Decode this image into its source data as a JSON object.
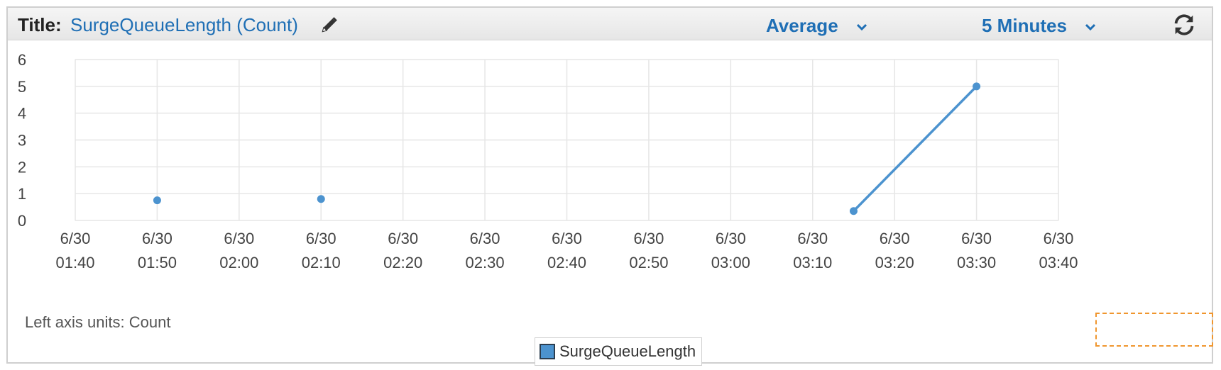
{
  "header": {
    "title_label": "Title:",
    "title_value": "SurgeQueueLength (Count)",
    "statistic": "Average",
    "period": "5 Minutes"
  },
  "icons": {
    "edit": "pencil-icon",
    "statistic_chevron": "chevron-down-icon",
    "period_chevron": "chevron-down-icon",
    "refresh": "refresh-icon"
  },
  "footer": {
    "axis_units_label": "Left axis units:",
    "axis_units_value": "Count"
  },
  "colors": {
    "accent": "#1f6fb5",
    "series": "#4c93cf",
    "grid": "#e6e6e6"
  },
  "chart_data": {
    "type": "line",
    "title": "",
    "xlabel": "",
    "ylabel": "",
    "ylim": [
      0,
      6
    ],
    "y_ticks": [
      "0",
      "1",
      "2",
      "3",
      "4",
      "5",
      "6"
    ],
    "x_ticks": [
      {
        "date": "6/30",
        "time": "01:40"
      },
      {
        "date": "6/30",
        "time": "01:50"
      },
      {
        "date": "6/30",
        "time": "02:00"
      },
      {
        "date": "6/30",
        "time": "02:10"
      },
      {
        "date": "6/30",
        "time": "02:20"
      },
      {
        "date": "6/30",
        "time": "02:30"
      },
      {
        "date": "6/30",
        "time": "02:40"
      },
      {
        "date": "6/30",
        "time": "02:50"
      },
      {
        "date": "6/30",
        "time": "03:00"
      },
      {
        "date": "6/30",
        "time": "03:10"
      },
      {
        "date": "6/30",
        "time": "03:20"
      },
      {
        "date": "6/30",
        "time": "03:30"
      },
      {
        "date": "6/30",
        "time": "03:40"
      }
    ],
    "xlim": [
      "6/30 01:40",
      "6/30 03:40"
    ],
    "grid": true,
    "legend_position": "bottom-center",
    "series": [
      {
        "name": "SurgeQueueLength",
        "points": [
          {
            "x": "6/30 01:50",
            "y": 0.75
          },
          {
            "x": "6/30 02:10",
            "y": 0.8
          },
          {
            "x": "6/30 03:15",
            "y": 0.35
          },
          {
            "x": "6/30 03:30",
            "y": 5
          }
        ],
        "segments": [
          [
            2,
            3
          ]
        ]
      }
    ]
  }
}
